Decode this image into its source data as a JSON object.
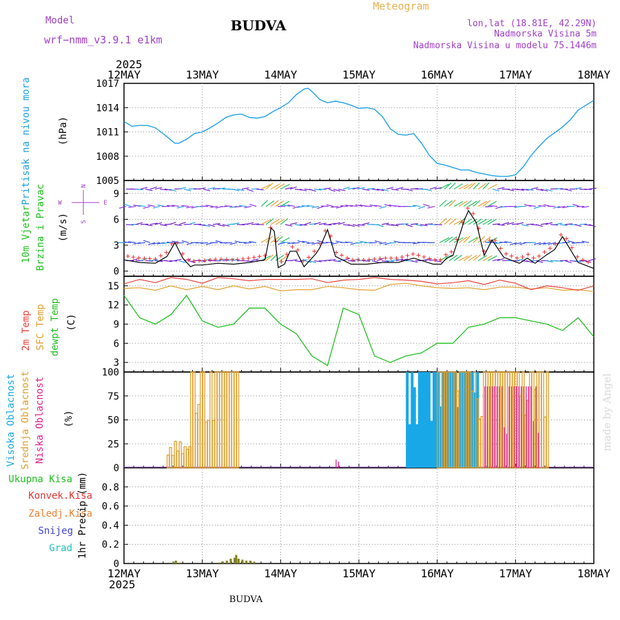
{
  "header": {
    "model_label": "Model",
    "model_name": "wrf−nmm_v3.9.1  e1km",
    "station": "BUDVA",
    "meteogram": "Meteogram",
    "lonlat": "lon,lat (18.81E, 42.29N)",
    "altitude": "Nadmorska Visina 5m",
    "model_altitude": "Nadmorska Visina u modelu 75.1446m",
    "credit": "made by Angel",
    "footer_station": "BUDVA"
  },
  "colors": {
    "pressure": "#1ea0e6",
    "temp2m": "#e8403c",
    "sfc_temp": "#e0a030",
    "dewpoint": "#20c020",
    "high_cloud": "#18a8e8",
    "mid_cloud": "#e0a030",
    "low_cloud": "#e0208c",
    "title_purple": "#a040c8",
    "meteogram": "#e8b050",
    "wind_speed": "#000000",
    "wind_gust": "#e83030"
  },
  "time_axis": {
    "year": "2025",
    "labels": [
      "12MAY",
      "13MAY",
      "14MAY",
      "15MAY",
      "16MAY",
      "17MAY",
      "18MAY"
    ]
  },
  "chart_data": [
    {
      "type": "line",
      "panel": "pressure",
      "ylabel_main": "Pritisak na nivou mora",
      "unit": "(hPa)",
      "ylim": [
        1005,
        1017
      ],
      "yticks": [
        "1005",
        "1008",
        "1011",
        "1014",
        "1017"
      ],
      "x_days": [
        0,
        0.1,
        0.2,
        0.3,
        0.4,
        0.5,
        0.6,
        0.65,
        0.7,
        0.8,
        0.9,
        1,
        1.1,
        1.2,
        1.3,
        1.4,
        1.5,
        1.6,
        1.7,
        1.8,
        1.9,
        2,
        2.1,
        2.2,
        2.3,
        2.35,
        2.4,
        2.5,
        2.6,
        2.7,
        2.8,
        2.9,
        3,
        3.1,
        3.2,
        3.3,
        3.4,
        3.5,
        3.6,
        3.7,
        3.8,
        3.9,
        4,
        4.1,
        4.2,
        4.3,
        4.4,
        4.5,
        4.6,
        4.7,
        4.8,
        4.9,
        5,
        5.1,
        5.2,
        5.3,
        5.4,
        5.5,
        5.6,
        5.7,
        5.8,
        5.9,
        6
      ],
      "series": [
        {
          "values": [
            1012.3,
            1011.7,
            1011.8,
            1011.8,
            1011.5,
            1010.8,
            1010,
            1009.6,
            1009.6,
            1010.1,
            1010.8,
            1011,
            1011.5,
            1012.1,
            1012.8,
            1013.1,
            1013.2,
            1012.8,
            1012.7,
            1012.9,
            1013.5,
            1014,
            1014.6,
            1015.6,
            1016.3,
            1016.4,
            1016,
            1015,
            1014.6,
            1014.8,
            1014.6,
            1014.3,
            1013.9,
            1014,
            1013.8,
            1012.9,
            1011.4,
            1010.7,
            1010.6,
            1010.8,
            1009.6,
            1008.1,
            1007.1,
            1006.9,
            1006.6,
            1006.3,
            1006.3,
            1006,
            1005.8,
            1005.6,
            1005.5,
            1005.5,
            1005.7,
            1006.7,
            1008.1,
            1009.2,
            1010.2,
            1010.9,
            1011.6,
            1012.5,
            1013.7,
            1014.3,
            1014.9
          ]
        }
      ]
    },
    {
      "type": "line",
      "panel": "wind",
      "ylabel_main": "10m Vjetar",
      "ylabel_sub": "Brzina i Pravac",
      "unit": "(m/s)",
      "compass": {
        "north": "N",
        "south": "S",
        "west": "W",
        "east": "E"
      },
      "ylim": [
        -0.6,
        10.5
      ],
      "yticks": [
        "0",
        "3",
        "6",
        "9"
      ],
      "x_days": [
        0,
        0.2,
        0.4,
        0.55,
        0.65,
        0.75,
        0.85,
        0.9,
        1,
        1.2,
        1.4,
        1.6,
        1.8,
        1.88,
        1.92,
        1.97,
        2.05,
        2.12,
        2.2,
        2.3,
        2.45,
        2.5,
        2.6,
        2.7,
        2.9,
        3.1,
        3.3,
        3.5,
        3.7,
        3.95,
        4.05,
        4.12,
        4.2,
        4.28,
        4.35,
        4.4,
        4.5,
        4.6,
        4.7,
        4.85,
        5.05,
        5.15,
        5.25,
        5.4,
        5.5,
        5.6,
        5.8,
        6
      ],
      "series": [
        {
          "name": "speed",
          "values": [
            1.3,
            1,
            0.9,
            1.7,
            3.3,
            1.5,
            0.5,
            0.7,
            0.7,
            0.9,
            0.8,
            1,
            1.3,
            5,
            4.6,
            0.4,
            0.8,
            2.3,
            2.3,
            0.5,
            2,
            2.7,
            4.8,
            1.7,
            0.8,
            0.8,
            1,
            1,
            1.5,
            0.8,
            0.8,
            1.5,
            1.8,
            4,
            6,
            7,
            5.6,
            1.8,
            3.6,
            1.6,
            0.9,
            1.5,
            0.9,
            1.9,
            2.5,
            4,
            1,
            0.3
          ]
        }
      ]
    },
    {
      "type": "line",
      "panel": "temperature",
      "series_labels": [
        "2m Temp",
        "SFC Temp",
        "dewpt Temp"
      ],
      "unit": "(C)",
      "ylim": [
        1.5,
        16.5
      ],
      "yticks": [
        "3",
        "6",
        "9",
        "12",
        "15"
      ],
      "x_days": [
        0,
        0.2,
        0.4,
        0.6,
        0.8,
        1,
        1.2,
        1.4,
        1.6,
        1.8,
        2,
        2.2,
        2.4,
        2.6,
        2.8,
        3,
        3.2,
        3.4,
        3.6,
        3.8,
        4,
        4.2,
        4.4,
        4.6,
        4.8,
        5,
        5.2,
        5.4,
        5.6,
        5.8,
        6
      ],
      "series": [
        {
          "values": [
            15.3,
            16,
            15.5,
            16.3,
            16,
            15.4,
            16.3,
            16.1,
            15.8,
            16,
            16,
            16,
            16.1,
            15.5,
            15.9,
            16,
            16.3,
            16,
            15.9,
            15.7,
            15.3,
            15.5,
            15.8,
            15.2,
            15.9,
            15.4,
            14.4,
            15,
            14.7,
            14.3,
            15
          ]
        },
        {
          "values": [
            14.6,
            14.7,
            14.3,
            15,
            14.4,
            14.9,
            14.4,
            15,
            14.5,
            14.9,
            14.2,
            14.4,
            14.4,
            14.9,
            14.7,
            14.4,
            14.3,
            15.2,
            15.4,
            15,
            14.7,
            14.6,
            14.7,
            14.4,
            14.8,
            14.8,
            14.5,
            14.7,
            14.3,
            14.4,
            14.1
          ]
        },
        {
          "values": [
            13.5,
            10,
            9,
            10.5,
            13.5,
            9.5,
            8.5,
            9,
            11.5,
            11.5,
            9,
            7.5,
            4,
            2.5,
            11.5,
            10.5,
            4,
            3,
            4,
            4.5,
            6,
            6,
            8.5,
            9,
            10,
            10,
            9.5,
            9,
            8,
            10,
            7
          ]
        }
      ]
    },
    {
      "type": "bar",
      "panel": "clouds",
      "series_labels": [
        "Visoka Oblacnost",
        "Srednja Oblacnost",
        "Niska Oblacnost"
      ],
      "unit": "(%)",
      "ylim": [
        0,
        100
      ],
      "yticks": [
        "0",
        "25",
        "50",
        "75",
        "100"
      ],
      "events": [
        {
          "layer": "mid",
          "start_day": 0.85,
          "end_day": 1.45,
          "peak": 100
        },
        {
          "layer": "mid",
          "start_day": 0.55,
          "end_day": 0.85,
          "peak": 28
        },
        {
          "layer": "low",
          "start_day": 2.7,
          "end_day": 2.75,
          "peak": 12
        },
        {
          "layer": "high",
          "start_day": 3.6,
          "end_day": 4.5,
          "peak": 100
        },
        {
          "layer": "mid",
          "start_day": 4.0,
          "end_day": 5.4,
          "peak": 100
        },
        {
          "layer": "low",
          "start_day": 4.6,
          "end_day": 5.3,
          "peak": 100
        }
      ]
    },
    {
      "type": "bar",
      "panel": "precipitation",
      "series_labels": [
        "Ukupna Kisa",
        "Konvek.Kisa",
        "Zaledj.Kisa",
        "Snijeg",
        "Grad"
      ],
      "series_colors": [
        "#20c020",
        "#e83030",
        "#f08030",
        "#4040e0",
        "#20c0c0"
      ],
      "unit": "1hr Precip (mm)",
      "ylim": [
        0,
        1
      ],
      "yticks": [
        "0",
        "0.2",
        "0.4",
        "0.6",
        "0.8"
      ],
      "x_days": [
        0.62,
        0.65,
        0.7,
        1.2,
        1.25,
        1.3,
        1.35,
        1.4,
        1.42,
        1.45,
        1.5,
        1.55,
        1.6,
        1.65
      ],
      "values": [
        0.02,
        0.03,
        0.01,
        0.01,
        0.02,
        0.03,
        0.05,
        0.06,
        0.09,
        0.05,
        0.04,
        0.03,
        0.03,
        0.02
      ]
    }
  ]
}
